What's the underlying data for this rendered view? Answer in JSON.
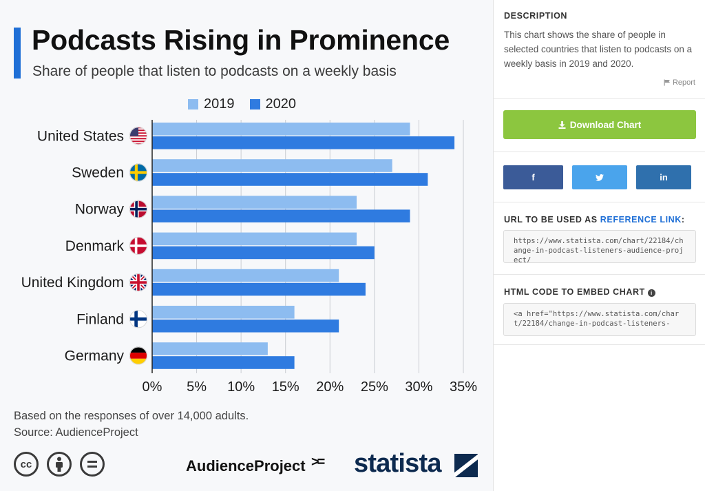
{
  "chart": {
    "title": "Podcasts Rising in Prominence",
    "subtitle": "Share of people that listen to podcasts on a weekly basis",
    "footnote_line1": "Based on the responses of over 14,000 adults.",
    "footnote_line2": "Source: AudienceProject",
    "cc_icons": [
      "cc",
      "by",
      "nd"
    ],
    "logo_audienceproject": "AudienceProject",
    "logo_audienceproject_mark": ">=",
    "logo_statista": "statista"
  },
  "chart_data": {
    "type": "bar",
    "orientation": "horizontal",
    "categories": [
      "United States",
      "Sweden",
      "Norway",
      "Denmark",
      "United Kingdom",
      "Finland",
      "Germany"
    ],
    "category_icons": [
      "flag-us-icon",
      "flag-se-icon",
      "flag-no-icon",
      "flag-dk-icon",
      "flag-gb-icon",
      "flag-fi-icon",
      "flag-de-icon"
    ],
    "series": [
      {
        "name": "2019",
        "color": "#8dbcf0",
        "values": [
          29,
          27,
          23,
          23,
          21,
          16,
          13
        ]
      },
      {
        "name": "2020",
        "color": "#2f7be0",
        "values": [
          34,
          31,
          29,
          25,
          24,
          21,
          16
        ]
      }
    ],
    "xlim": [
      0,
      35
    ],
    "xticks": [
      0,
      5,
      10,
      15,
      20,
      25,
      30,
      35
    ],
    "tick_format": "percent",
    "grid": true,
    "legend_position": "top"
  },
  "sidebar": {
    "description_label": "DESCRIPTION",
    "description_text": "This chart shows the share of people in selected countries that listen to podcasts on a weekly basis in 2019 and 2020.",
    "report_label": "Report",
    "download_label": "Download Chart",
    "share": {
      "facebook": "f",
      "twitter": "🐦",
      "linkedin": "in"
    },
    "reference_label_prefix": "URL TO BE USED AS",
    "reference_label_accent": "REFERENCE LINK",
    "reference_label_suffix": ":",
    "reference_url": "https://www.statista.com/chart/22184/change-in-podcast-listeners-audience-project/",
    "embed_label": "HTML CODE TO EMBED CHART",
    "embed_code": "<a href=\"https://www.statista.com/chart/22184/change-in-podcast-listeners-"
  }
}
